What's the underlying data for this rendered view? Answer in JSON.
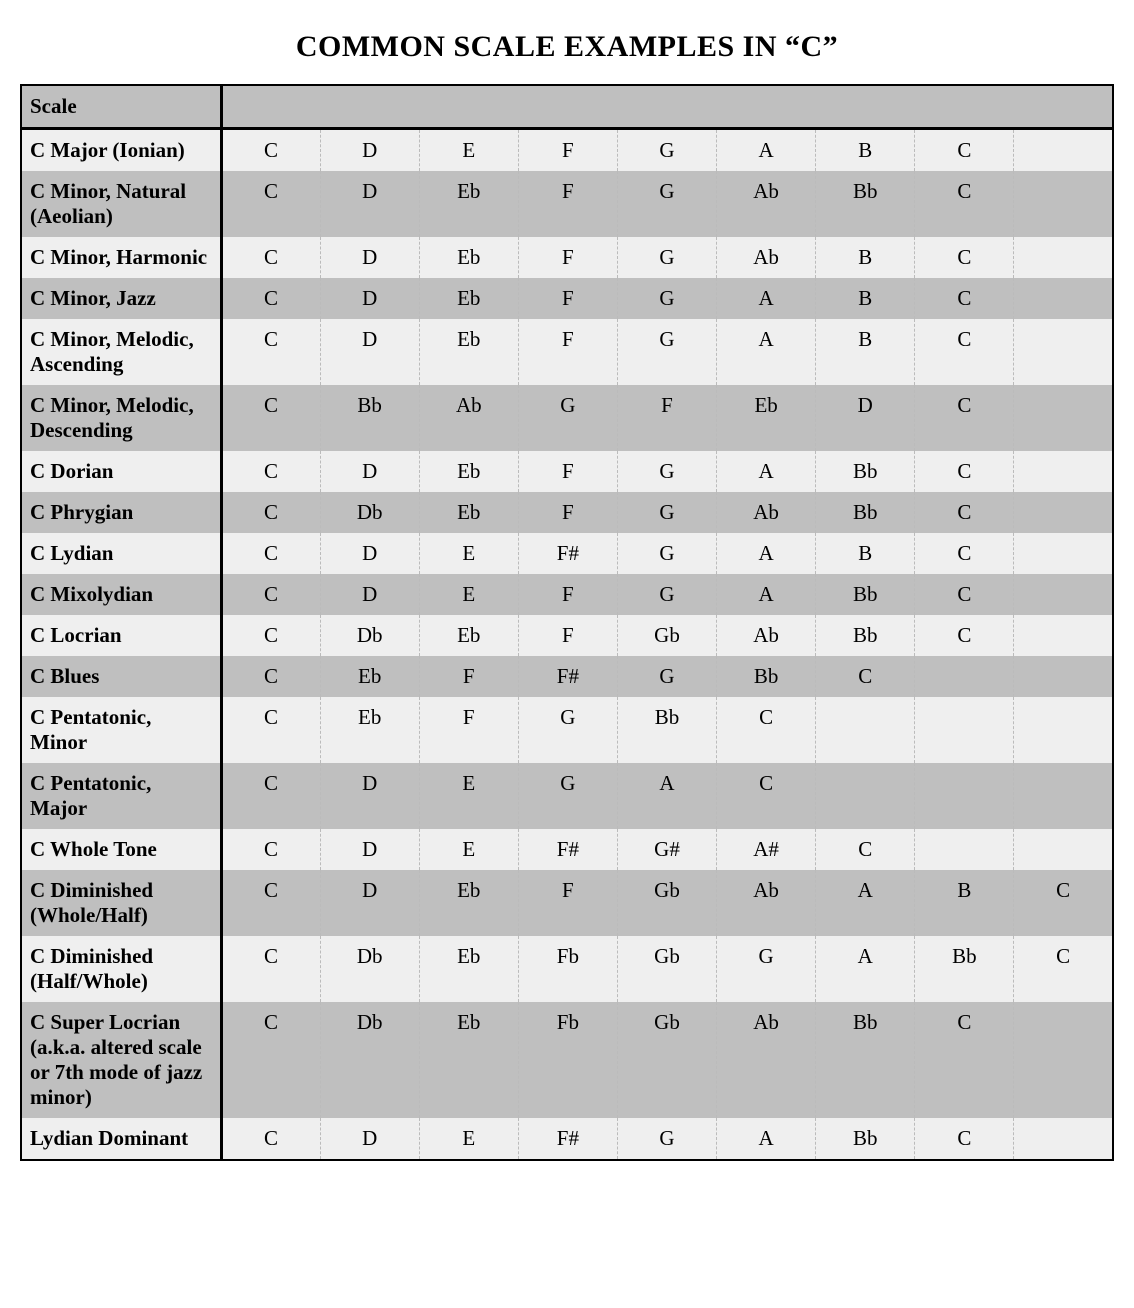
{
  "title": "COMMON SCALE EXAMPLES IN “C”",
  "table": {
    "header_label": "Scale",
    "note_columns": 9,
    "colors": {
      "row_light": "#efefef",
      "row_dark": "#bfbfbf",
      "border": "#000000",
      "dashed": "#bbbbbb",
      "background": "#ffffff"
    },
    "fonts": {
      "title_size_pt": 22,
      "cell_size_pt": 16,
      "family": "Times New Roman"
    },
    "rows": [
      {
        "name": "C Major (Ionian)",
        "notes": [
          "C",
          "D",
          "E",
          "F",
          "G",
          "A",
          "B",
          "C",
          ""
        ]
      },
      {
        "name": "C Minor, Natural (Aeolian)",
        "notes": [
          "C",
          "D",
          "Eb",
          "F",
          "G",
          "Ab",
          "Bb",
          "C",
          ""
        ]
      },
      {
        "name": "C Minor, Harmonic",
        "notes": [
          "C",
          "D",
          "Eb",
          "F",
          "G",
          "Ab",
          "B",
          "C",
          ""
        ]
      },
      {
        "name": "C Minor, Jazz",
        "notes": [
          "C",
          "D",
          "Eb",
          "F",
          "G",
          "A",
          "B",
          "C",
          ""
        ]
      },
      {
        "name": "C Minor, Melodic, Ascending",
        "notes": [
          "C",
          "D",
          "Eb",
          "F",
          "G",
          "A",
          "B",
          "C",
          ""
        ]
      },
      {
        "name": "C Minor, Melodic, Descending",
        "notes": [
          "C",
          "Bb",
          "Ab",
          "G",
          "F",
          "Eb",
          "D",
          "C",
          ""
        ]
      },
      {
        "name": "C Dorian",
        "notes": [
          "C",
          "D",
          "Eb",
          "F",
          "G",
          "A",
          "Bb",
          "C",
          ""
        ]
      },
      {
        "name": "C Phrygian",
        "notes": [
          "C",
          "Db",
          "Eb",
          "F",
          "G",
          "Ab",
          "Bb",
          "C",
          ""
        ]
      },
      {
        "name": "C Lydian",
        "notes": [
          "C",
          "D",
          "E",
          "F#",
          "G",
          "A",
          "B",
          "C",
          ""
        ]
      },
      {
        "name": "C Mixolydian",
        "notes": [
          "C",
          "D",
          "E",
          "F",
          "G",
          "A",
          "Bb",
          "C",
          ""
        ]
      },
      {
        "name": "C Locrian",
        "notes": [
          "C",
          "Db",
          "Eb",
          "F",
          "Gb",
          "Ab",
          "Bb",
          "C",
          ""
        ]
      },
      {
        "name": "C Blues",
        "notes": [
          "C",
          "Eb",
          "F",
          "F#",
          "G",
          "Bb",
          "C",
          "",
          ""
        ]
      },
      {
        "name": "C Pentatonic, Minor",
        "notes": [
          "C",
          "Eb",
          "F",
          "G",
          "Bb",
          "C",
          "",
          "",
          ""
        ]
      },
      {
        "name": "C Pentatonic, Major",
        "notes": [
          "C",
          "D",
          "E",
          "G",
          "A",
          "C",
          "",
          "",
          ""
        ]
      },
      {
        "name": "C Whole Tone",
        "notes": [
          "C",
          "D",
          "E",
          "F#",
          "G#",
          "A#",
          "C",
          "",
          ""
        ]
      },
      {
        "name": "C Diminished (Whole/Half)",
        "notes": [
          "C",
          "D",
          "Eb",
          "F",
          "Gb",
          "Ab",
          "A",
          "B",
          "C"
        ]
      },
      {
        "name": "C Diminished (Half/Whole)",
        "notes": [
          "C",
          "Db",
          "Eb",
          "Fb",
          "Gb",
          "G",
          "A",
          "Bb",
          "C"
        ]
      },
      {
        "name": "C Super Locrian (a.k.a. altered scale or 7th mode of jazz minor)",
        "notes": [
          "C",
          "Db",
          "Eb",
          "Fb",
          "Gb",
          "Ab",
          "Bb",
          "C",
          ""
        ]
      },
      {
        "name": "Lydian Dominant",
        "notes": [
          "C",
          "D",
          "E",
          "F#",
          "G",
          "A",
          "Bb",
          "C",
          ""
        ]
      }
    ]
  }
}
